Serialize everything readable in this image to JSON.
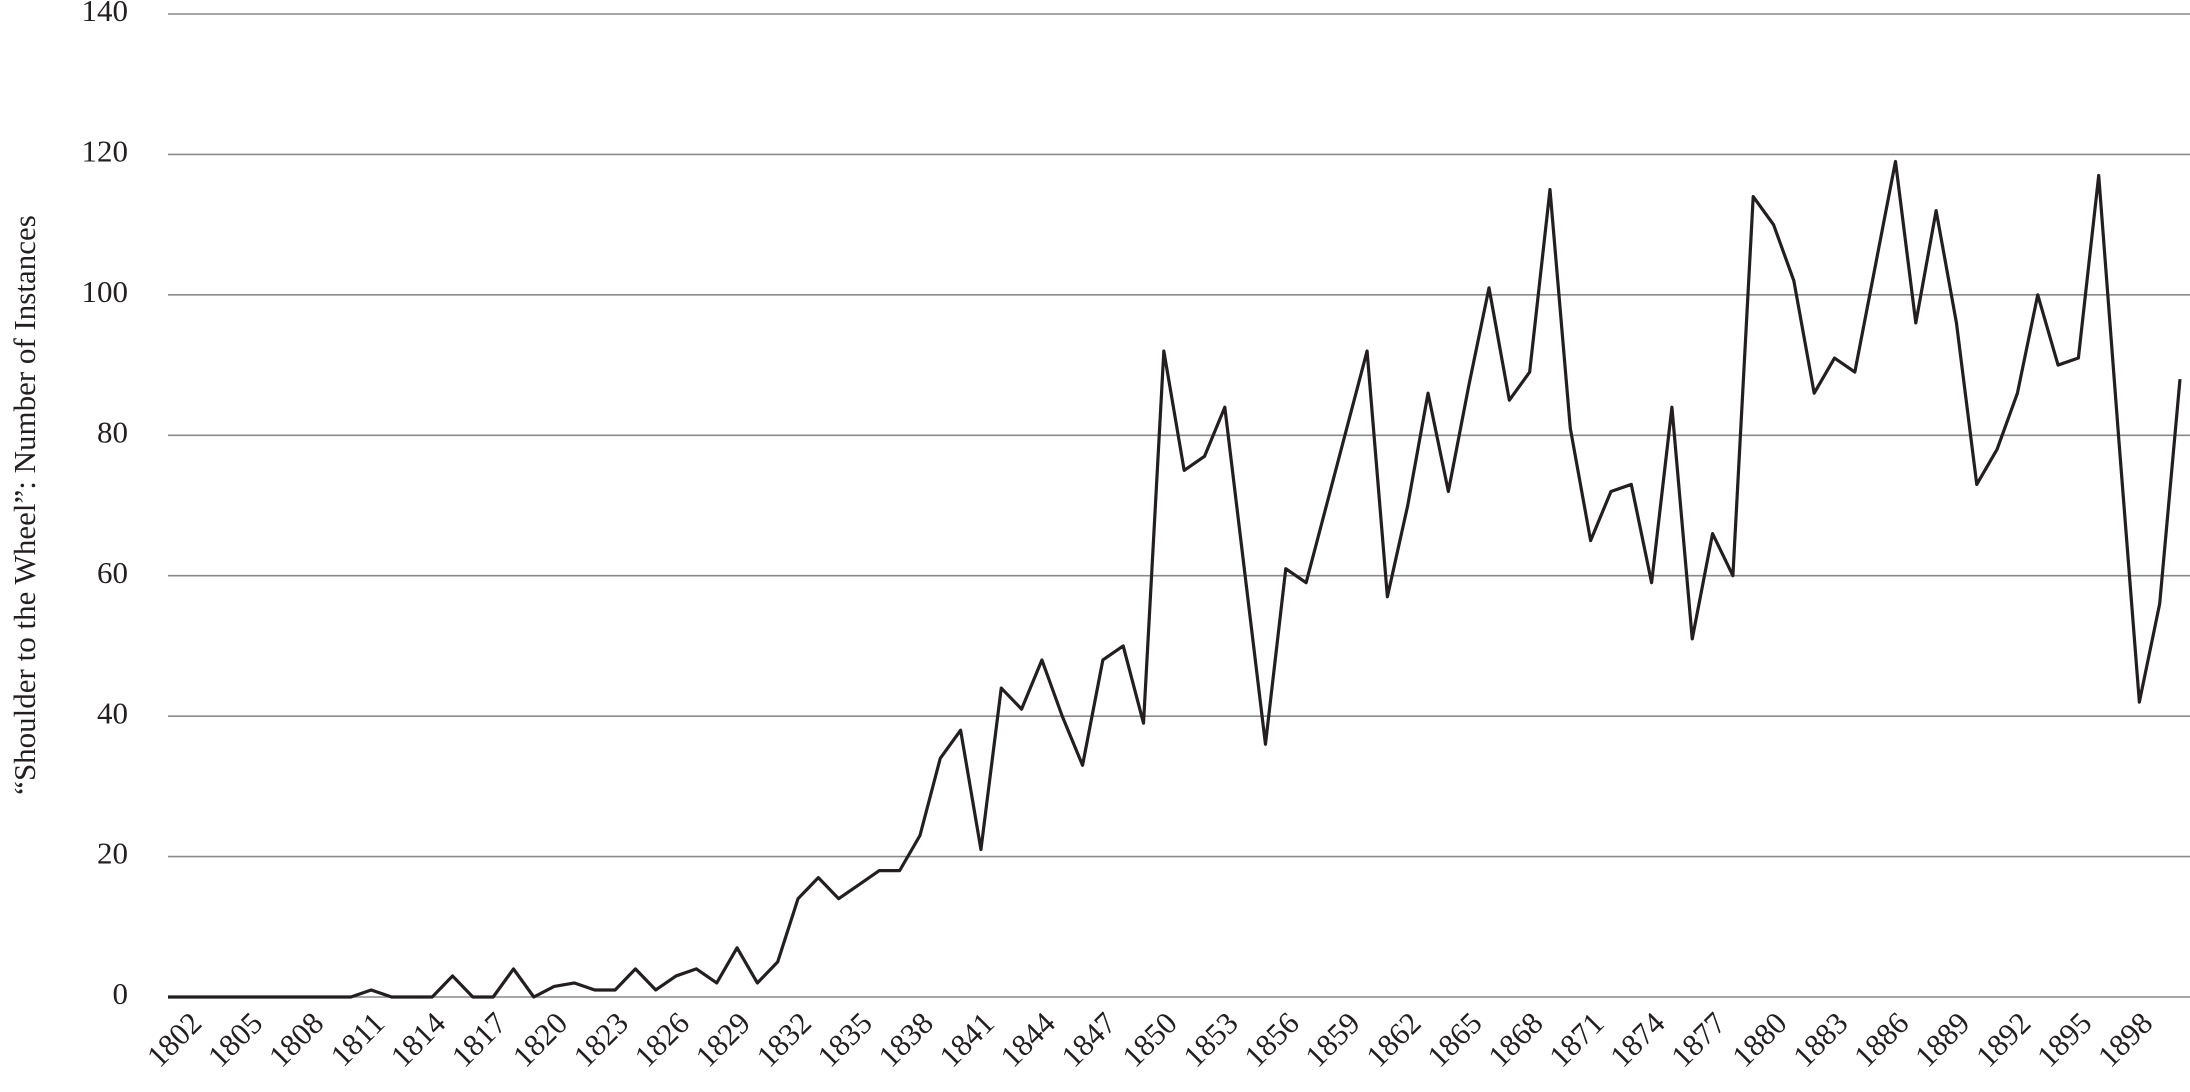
{
  "chart_data": {
    "type": "line",
    "ylabel": "“Shoulder to the Wheel”: Number of Instances",
    "x": [
      1801,
      1802,
      1803,
      1804,
      1805,
      1806,
      1807,
      1808,
      1809,
      1810,
      1811,
      1812,
      1813,
      1814,
      1815,
      1816,
      1817,
      1818,
      1819,
      1820,
      1821,
      1822,
      1823,
      1824,
      1825,
      1826,
      1827,
      1828,
      1829,
      1830,
      1831,
      1832,
      1833,
      1834,
      1835,
      1836,
      1837,
      1838,
      1839,
      1840,
      1841,
      1842,
      1843,
      1844,
      1845,
      1846,
      1847,
      1848,
      1849,
      1850,
      1851,
      1852,
      1853,
      1854,
      1855,
      1856,
      1857,
      1858,
      1859,
      1860,
      1861,
      1862,
      1863,
      1864,
      1865,
      1866,
      1867,
      1868,
      1869,
      1870,
      1871,
      1872,
      1873,
      1874,
      1875,
      1876,
      1877,
      1878,
      1879,
      1880,
      1881,
      1882,
      1883,
      1884,
      1885,
      1886,
      1887,
      1888,
      1889,
      1890,
      1891,
      1892,
      1893,
      1894,
      1895,
      1896,
      1897,
      1898,
      1899,
      1900
    ],
    "series": [
      {
        "color": "#231f20",
        "values": [
          0,
          0,
          0,
          0,
          0,
          0,
          0,
          0,
          0,
          0,
          1,
          0,
          0,
          0,
          3,
          0,
          0,
          4,
          0,
          1.5,
          2,
          1,
          1,
          4,
          1,
          3,
          4,
          2,
          7,
          2,
          5,
          14,
          17,
          14,
          16,
          18,
          18,
          23,
          34,
          38,
          21,
          44,
          41,
          48,
          40,
          33,
          48,
          50,
          39,
          92,
          75,
          77,
          84,
          60,
          36,
          61,
          59,
          70,
          81,
          92,
          57,
          70,
          86,
          72,
          87,
          101,
          85,
          89,
          115,
          81,
          65,
          72,
          73,
          59,
          84,
          51,
          66,
          60,
          114,
          110,
          102,
          86,
          91,
          89,
          104,
          119,
          96,
          112,
          96,
          73,
          78,
          86,
          100,
          90,
          91,
          117,
          79,
          42,
          56,
          88
        ]
      }
    ],
    "xlim": [
      1801,
      1900
    ],
    "xticks": [
      1802,
      1805,
      1808,
      1811,
      1814,
      1817,
      1820,
      1823,
      1826,
      1829,
      1832,
      1835,
      1838,
      1841,
      1844,
      1847,
      1850,
      1853,
      1856,
      1859,
      1862,
      1865,
      1868,
      1871,
      1874,
      1877,
      1880,
      1883,
      1886,
      1889,
      1892,
      1895,
      1898
    ],
    "ylim": [
      0,
      140
    ],
    "yticks": [
      0,
      20,
      40,
      60,
      80,
      100,
      120,
      140
    ],
    "grid": true
  }
}
